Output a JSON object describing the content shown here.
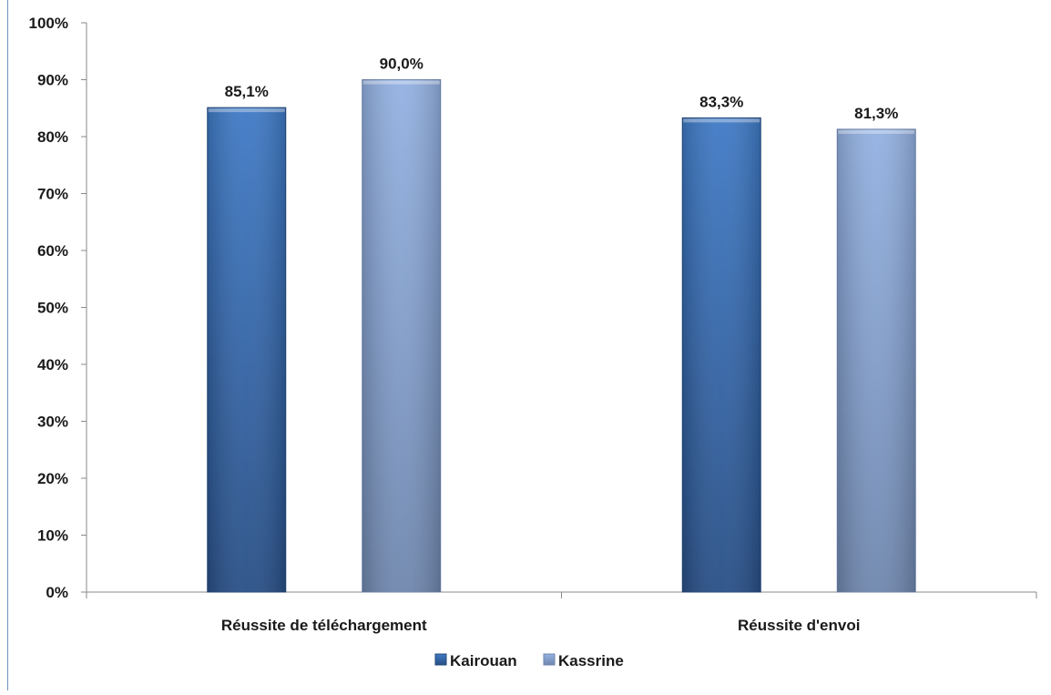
{
  "chart_data": {
    "type": "bar",
    "categories": [
      "Réussite de téléchargement",
      "Réussite d'envoi"
    ],
    "series": [
      {
        "name": "Kairouan",
        "values": [
          85.1,
          83.3
        ],
        "labels": [
          "85,1%",
          "83,3%"
        ],
        "color": "#3a70b8"
      },
      {
        "name": "Kassrine",
        "values": [
          90.0,
          81.3
        ],
        "labels": [
          "90,0%",
          "81,3%"
        ],
        "color": "#8aa8d8"
      }
    ],
    "ylim": [
      0,
      100
    ],
    "yticks": [
      0,
      10,
      20,
      30,
      40,
      50,
      60,
      70,
      80,
      90,
      100
    ],
    "ytick_labels": [
      "0%",
      "10%",
      "20%",
      "30%",
      "40%",
      "50%",
      "60%",
      "70%",
      "80%",
      "90%",
      "100%"
    ],
    "title": "",
    "xlabel": "",
    "ylabel": "",
    "grid": false,
    "legend_position": "bottom"
  }
}
